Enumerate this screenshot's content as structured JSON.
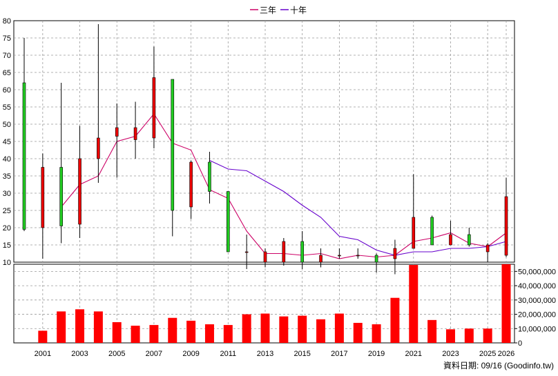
{
  "legend": [
    {
      "label": "三年",
      "color": "#cc0066"
    },
    {
      "label": "十年",
      "color": "#6600cc"
    }
  ],
  "footer": "資料日期: 09/16  (Goodinfo.tw)",
  "colors": {
    "up": "#ee0000",
    "down": "#22cc22",
    "volume": "#ff0000",
    "wick": "#000000",
    "grid": "#999999"
  },
  "chart_data": [
    {
      "type": "candlestick",
      "ylim": [
        10,
        80
      ],
      "yticks": [
        10,
        15,
        20,
        25,
        30,
        35,
        40,
        45,
        50,
        55,
        60,
        65,
        70,
        75,
        80
      ],
      "xticks": [
        "2001",
        "2003",
        "2005",
        "2007",
        "2009",
        "2011",
        "2013",
        "2015",
        "2017",
        "2019",
        "2021",
        "2023",
        "2025",
        "2026"
      ],
      "years": [
        2000,
        2001,
        2002,
        2003,
        2004,
        2005,
        2006,
        2007,
        2008,
        2009,
        2010,
        2011,
        2012,
        2013,
        2014,
        2015,
        2016,
        2017,
        2018,
        2019,
        2020,
        2021,
        2022,
        2023,
        2024,
        2025,
        2026
      ],
      "open": [
        62,
        20,
        37.5,
        21,
        40,
        46.5,
        45.5,
        46,
        63,
        26,
        39,
        30.5,
        13,
        10,
        10,
        16,
        10,
        12,
        12,
        12,
        11,
        14,
        23,
        15,
        18,
        13,
        12
      ],
      "close": [
        19.5,
        37.5,
        20.5,
        40,
        46,
        49,
        49,
        63.5,
        25,
        39,
        30.5,
        13,
        13,
        13,
        16,
        10,
        12,
        12,
        12,
        10,
        14,
        23,
        15,
        18,
        15,
        15,
        29
      ],
      "high": [
        75,
        41.5,
        62,
        49.5,
        79,
        56,
        56.5,
        72.5,
        63,
        39.5,
        42,
        30.5,
        18,
        14,
        17,
        19,
        14,
        14,
        14,
        12.5,
        16.5,
        35.5,
        23.5,
        22,
        20,
        15.5,
        34.5
      ],
      "low": [
        19,
        11,
        15.5,
        17,
        33,
        34.5,
        40,
        43,
        17.5,
        22.5,
        27,
        13,
        8,
        8.5,
        9,
        8,
        8.5,
        11,
        11,
        7,
        6.5,
        14,
        15,
        15,
        14.5,
        10,
        11.5
      ],
      "series": [
        {
          "name": "三年",
          "x": [
            2002,
            2003,
            2004,
            2005,
            2006,
            2007,
            2008,
            2009,
            2010,
            2011,
            2012,
            2013,
            2014,
            2015,
            2016,
            2017,
            2018,
            2019,
            2020,
            2021,
            2022,
            2023,
            2024,
            2025,
            2026
          ],
          "values": [
            26,
            32.5,
            35,
            45,
            46.5,
            53,
            44.5,
            42.5,
            31,
            28.5,
            19,
            12.5,
            12.5,
            12,
            12.5,
            11,
            12,
            11.5,
            12,
            16,
            17,
            18.5,
            15.5,
            14.5,
            18.5
          ]
        },
        {
          "name": "十年",
          "x": [
            2010,
            2011,
            2012,
            2013,
            2014,
            2015,
            2016,
            2017,
            2018,
            2019,
            2020,
            2021,
            2022,
            2023,
            2024,
            2025,
            2026
          ],
          "values": [
            39.5,
            37,
            36.5,
            33.5,
            30.5,
            26.5,
            23,
            17.5,
            16.5,
            13.5,
            12,
            13,
            13,
            14,
            14,
            14.5,
            16
          ]
        }
      ]
    },
    {
      "type": "bar",
      "ylim": [
        0,
        55000000
      ],
      "yticks": [
        "0",
        "10,000,000",
        "20,000,000",
        "30,000,000",
        "40,000,000",
        "50,000,000"
      ],
      "ytick_values": [
        0,
        10000000,
        20000000,
        30000000,
        40000000,
        50000000
      ],
      "years": [
        2001,
        2002,
        2003,
        2004,
        2005,
        2006,
        2007,
        2008,
        2009,
        2010,
        2011,
        2012,
        2013,
        2014,
        2015,
        2016,
        2017,
        2018,
        2019,
        2020,
        2021,
        2022,
        2023,
        2024,
        2025,
        2026
      ],
      "values": [
        8500000,
        22000000,
        23500000,
        22000000,
        14500000,
        12000000,
        12500000,
        17500000,
        15500000,
        13000000,
        12500000,
        20000000,
        20500000,
        18500000,
        19000000,
        16500000,
        20500000,
        14000000,
        13000000,
        31500000,
        54500000,
        16000000,
        9500000,
        10000000,
        10000000,
        55000000
      ]
    }
  ]
}
